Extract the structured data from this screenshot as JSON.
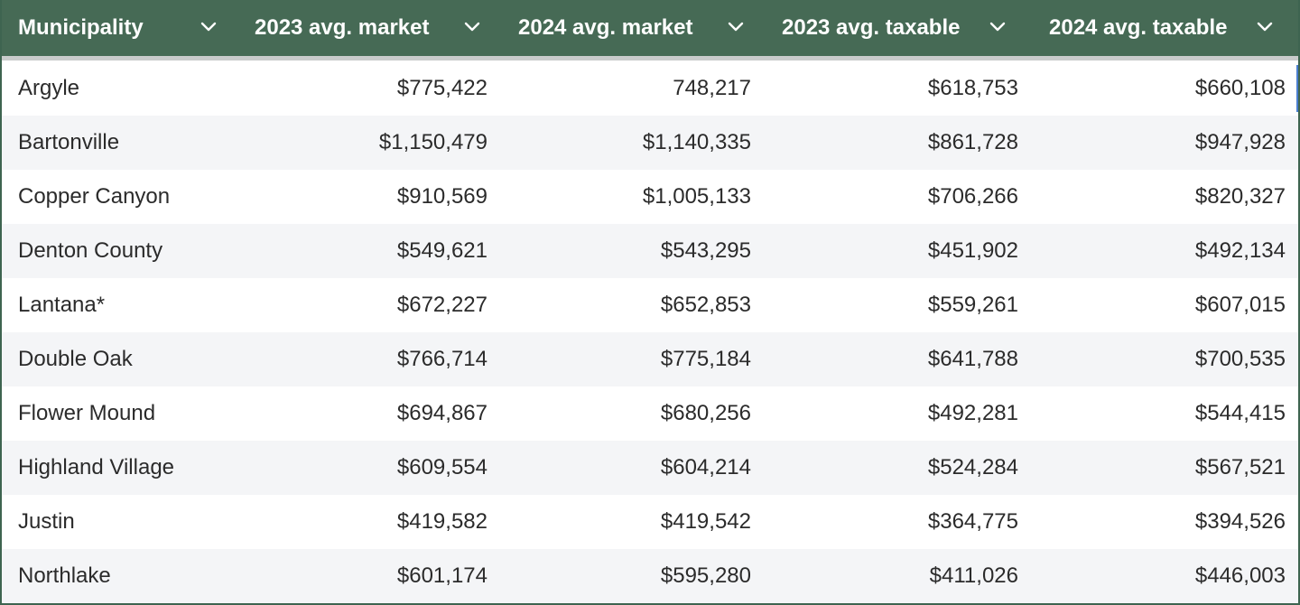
{
  "table": {
    "columns": [
      "Municipality",
      "2023 avg. market",
      "2024 avg. market",
      "2023 avg. taxable",
      "2024 avg. taxable"
    ],
    "rows": [
      [
        "Argyle",
        "$775,422",
        "748,217",
        "$618,753",
        "$660,108"
      ],
      [
        "Bartonville",
        "$1,150,479",
        "$1,140,335",
        "$861,728",
        "$947,928"
      ],
      [
        "Copper Canyon",
        "$910,569",
        "$1,005,133",
        "$706,266",
        "$820,327"
      ],
      [
        "Denton County",
        "$549,621",
        "$543,295",
        "$451,902",
        "$492,134"
      ],
      [
        "Lantana*",
        "$672,227",
        "$652,853",
        "$559,261",
        "$607,015"
      ],
      [
        "Double Oak",
        "$766,714",
        "$775,184",
        "$641,788",
        "$700,535"
      ],
      [
        "Flower Mound",
        "$694,867",
        "$680,256",
        "$492,281",
        "$544,415"
      ],
      [
        "Highland Village",
        "$609,554",
        "$604,214",
        "$524,284",
        "$567,521"
      ],
      [
        "Justin",
        "$419,582",
        "$419,542",
        "$364,775",
        "$394,526"
      ],
      [
        "Northlake",
        "$601,174",
        "$595,280",
        "$411,026",
        "$446,003"
      ]
    ]
  },
  "colors": {
    "header_bg": "#466a55",
    "header_text": "#ffffff",
    "row_alt_bg": "#f4f5f7",
    "border": "#3e6450"
  },
  "icons": {
    "sort": "chevron-down-icon"
  }
}
